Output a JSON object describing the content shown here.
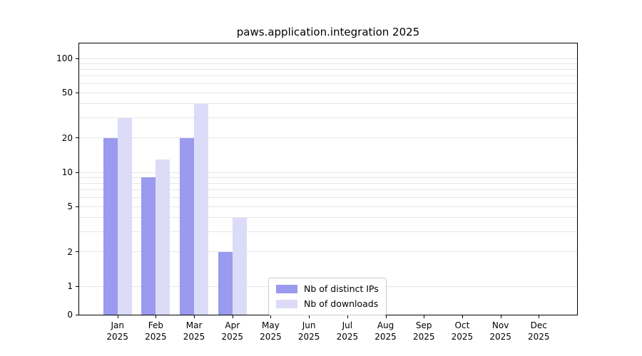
{
  "chart_data": {
    "type": "bar",
    "title": "paws.application.integration 2025",
    "categories": [
      "Jan",
      "Feb",
      "Mar",
      "Apr",
      "May",
      "Jun",
      "Jul",
      "Aug",
      "Sep",
      "Oct",
      "Nov",
      "Dec"
    ],
    "category_year": "2025",
    "series": [
      {
        "name": "Nb of distinct IPs",
        "color": "#9a9aef",
        "values": [
          20,
          9,
          20,
          2,
          0,
          0,
          0,
          0,
          0,
          0,
          0,
          0
        ]
      },
      {
        "name": "Nb of downloads",
        "color": "#dcdcf8",
        "values": [
          30,
          13,
          40,
          4,
          0,
          0,
          0,
          0,
          0,
          0,
          0,
          0
        ]
      }
    ],
    "yticks": [
      0,
      1,
      2,
      5,
      10,
      20,
      50,
      100
    ],
    "ylim": [
      0,
      100
    ],
    "xlabel": "",
    "ylabel": "",
    "scale": "log above 1, zero pinned to baseline",
    "grid": "horizontal light-gray lines at 1-9, 10-90, 100",
    "legend": {
      "position": "bottom-center inside plot",
      "labels": [
        "Nb of distinct IPs",
        "Nb of downloads"
      ]
    }
  }
}
